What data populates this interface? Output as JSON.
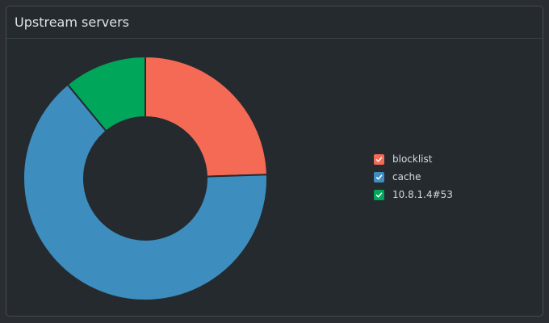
{
  "panel": {
    "title": "Upstream servers"
  },
  "chart_data": {
    "type": "pie",
    "variant": "donut",
    "series": [
      {
        "name": "blocklist",
        "value": 24.5,
        "color": "#f46a55"
      },
      {
        "name": "cache",
        "value": 64.5,
        "color": "#3d8dbf"
      },
      {
        "name": "10.8.1.4#53",
        "value": 11.0,
        "color": "#00a65a"
      }
    ],
    "legend_position": "right",
    "start_angle": "top",
    "direction": "clockwise"
  },
  "legend": {
    "check_icon": "check-icon"
  }
}
